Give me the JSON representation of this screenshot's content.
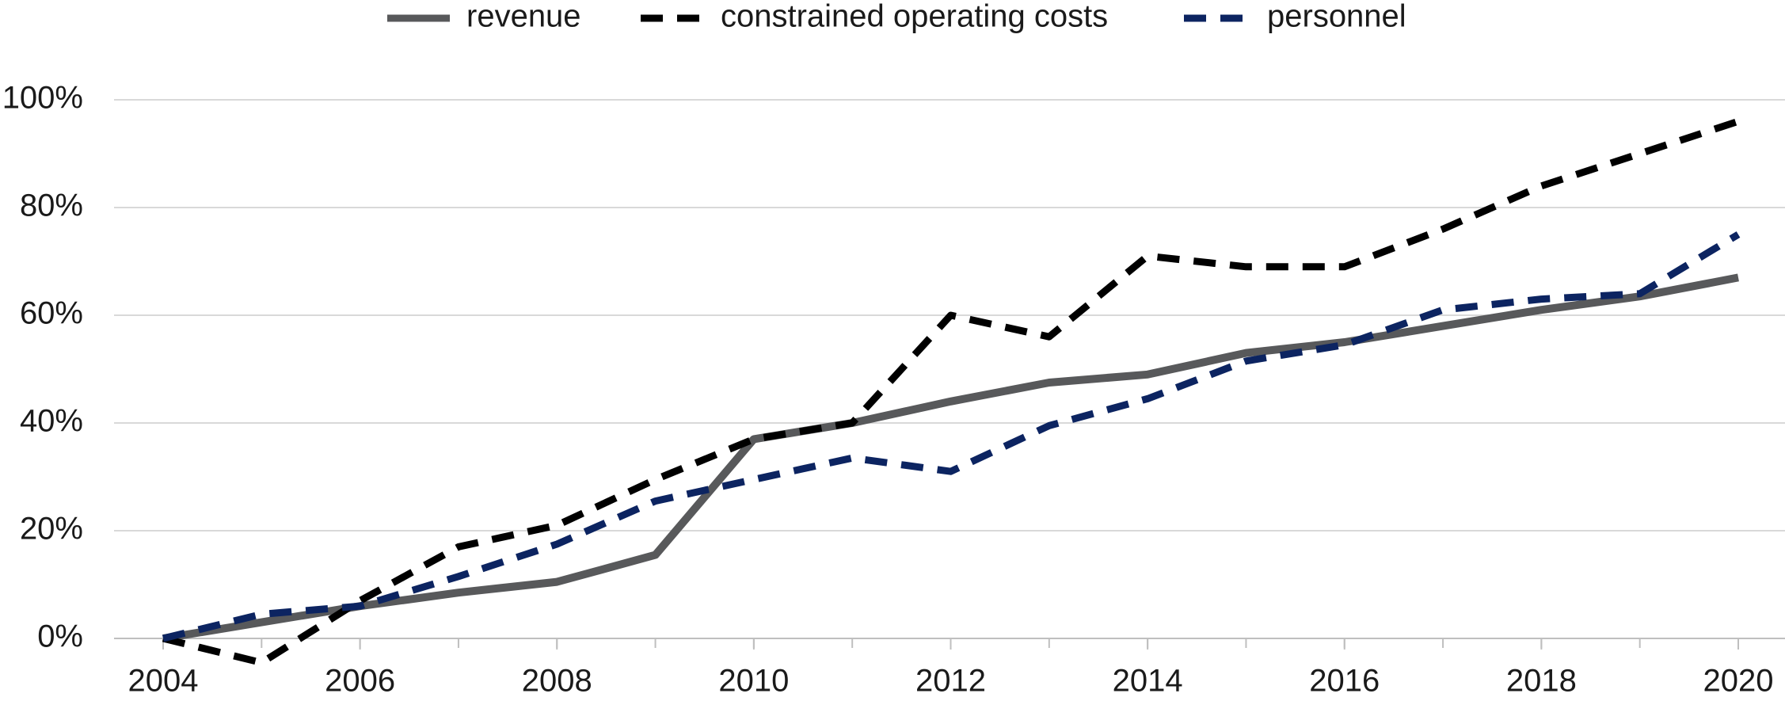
{
  "chart_data": {
    "type": "line",
    "x": [
      2004,
      2005,
      2006,
      2007,
      2008,
      2009,
      2010,
      2011,
      2012,
      2013,
      2014,
      2015,
      2016,
      2017,
      2018,
      2019,
      2020
    ],
    "series": [
      {
        "name": "revenue",
        "color": "#58595b",
        "dashed": false,
        "values": [
          0,
          3,
          6,
          8.5,
          10.5,
          15.5,
          37,
          40,
          44,
          47.5,
          49,
          53,
          55,
          58,
          61,
          63.5,
          67
        ]
      },
      {
        "name": "constrained operating costs",
        "color": "#000000",
        "dashed": true,
        "values": [
          0,
          -4.5,
          7,
          17,
          21,
          29.5,
          37,
          40,
          60,
          56,
          71,
          69,
          69,
          76,
          84,
          90,
          96
        ]
      },
      {
        "name": "personnel",
        "color": "#0c2461",
        "dashed": true,
        "values": [
          0,
          4.5,
          6,
          11.5,
          17.5,
          25.5,
          29.5,
          33.5,
          31,
          39.5,
          44.5,
          51.5,
          54.5,
          61,
          63,
          64,
          75
        ]
      }
    ],
    "xlim": [
      2004,
      2020
    ],
    "xticks": [
      2004,
      2006,
      2008,
      2010,
      2012,
      2014,
      2016,
      2018,
      2020
    ],
    "ylim": [
      0,
      100
    ],
    "yticks": [
      {
        "value": 0,
        "label": "0%"
      },
      {
        "value": 20,
        "label": "20%"
      },
      {
        "value": 40,
        "label": "40%"
      },
      {
        "value": 60,
        "label": "60%"
      },
      {
        "value": 80,
        "label": "80%"
      },
      {
        "value": 100,
        "label": "100%"
      }
    ],
    "grid": true,
    "legend": "top"
  }
}
